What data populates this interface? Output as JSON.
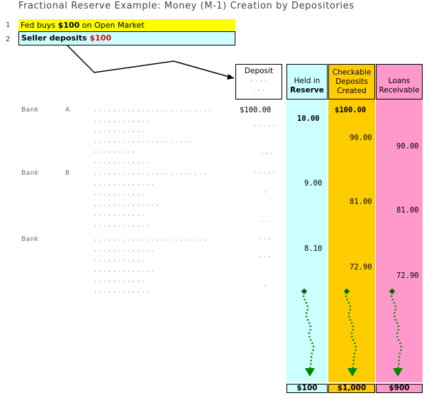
{
  "title": "Fractional Reserve Example: Money (M-1) Creation by Depositories",
  "steps": [
    {
      "num": "1",
      "prefix": "Fed buys ",
      "amount": "$100",
      "suffix": " on Open Market"
    },
    {
      "num": "2",
      "prefix": "Seller deposits ",
      "amount": "$100"
    }
  ],
  "headers": {
    "deposit": "Deposit",
    "held_in": "Held in",
    "reserve": "Reserve",
    "checkable": "Checkable",
    "deposits": "Deposits",
    "created": "Created",
    "loans": "Loans",
    "receivable": "Receivable"
  },
  "banks": [
    {
      "label": "Bank",
      "letter": "A",
      "deposit": "$100.00",
      "reserve": "10.00",
      "checkable": "$100.00",
      "checkable_new": "90.00",
      "loans": "90.00"
    },
    {
      "label": "Bank",
      "letter": "B",
      "reserve": "9.00",
      "checkable": "81.00",
      "loans": "81.00"
    },
    {
      "label": "Bank",
      "reserve": "8.10",
      "checkable": "72.90",
      "loans": "72.90"
    }
  ],
  "totals": {
    "reserve": "$100",
    "checkable": "$1,000",
    "loans": "$900"
  },
  "colors": {
    "reserve": "#ccffff",
    "checkable": "#ffcc00",
    "loans": "#ff99cc",
    "step1": "#ffff00",
    "arrow": "#006600"
  },
  "icons": {
    "arrow": "wavy-down-arrow-icon"
  }
}
